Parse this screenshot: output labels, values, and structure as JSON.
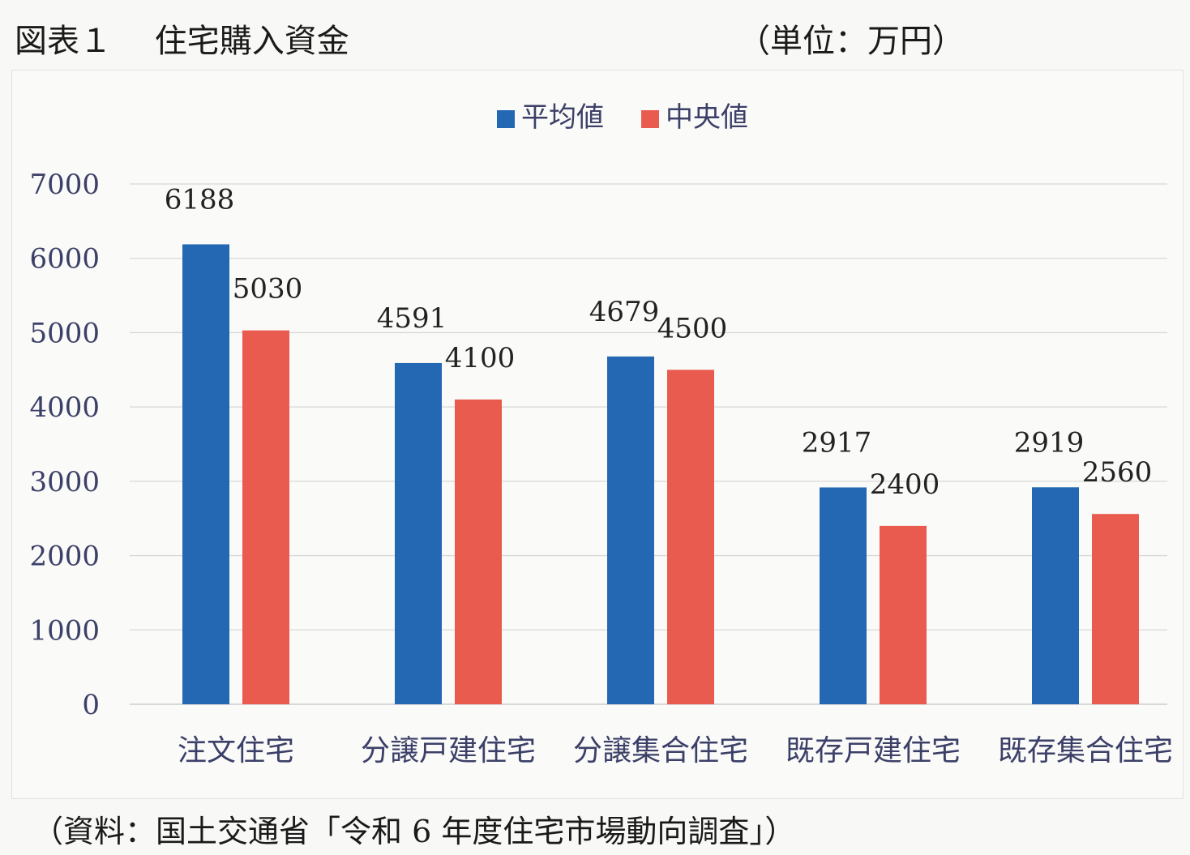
{
  "header": {
    "title": "図表１　 住宅購入資金",
    "unit": "（単位：万円）"
  },
  "footer": {
    "source": "（資料：国土交通省「令和 6 年度住宅市場動向調査」）"
  },
  "colors": {
    "mean": "#2468b4",
    "median": "#e85b4e",
    "grid": "#d8d8d8",
    "axis_text": "#3c4068"
  },
  "chart_data": {
    "type": "bar",
    "categories": [
      "注文住宅",
      "分譲戸建住宅",
      "分譲集合住宅",
      "既存戸建住宅",
      "既存集合住宅"
    ],
    "series": [
      {
        "name": "平均値",
        "values": [
          6188,
          4591,
          4679,
          2917,
          2919
        ]
      },
      {
        "name": "中央値",
        "values": [
          5030,
          4100,
          4500,
          2400,
          2560
        ]
      }
    ],
    "yticks": [
      "0",
      "1000",
      "2000",
      "3000",
      "4000",
      "5000",
      "6000",
      "7000"
    ],
    "ylim": [
      0,
      7000
    ],
    "grid": true,
    "legend": "top-center",
    "data_labels": true
  }
}
